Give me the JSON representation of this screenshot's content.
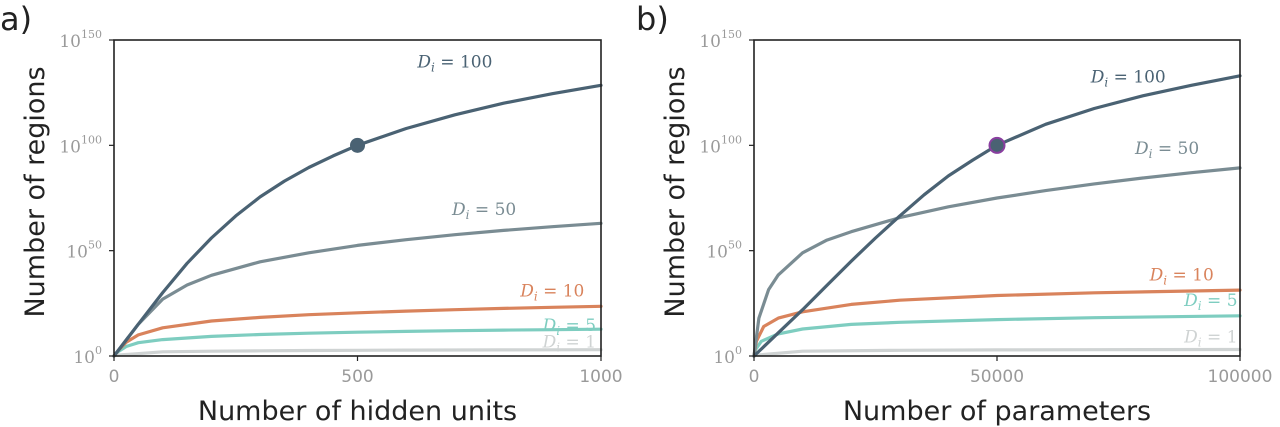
{
  "chart_data": [
    {
      "panel_label": "a)",
      "type": "line",
      "xlabel": "Number of hidden units",
      "ylabel": "Number of regions",
      "xlim": [
        0,
        1000
      ],
      "ylim": [
        0,
        150
      ],
      "y_scale": "log10",
      "xticks": [
        {
          "value": 0,
          "label": "0"
        },
        {
          "value": 500,
          "label": "500"
        },
        {
          "value": 1000,
          "label": "1000"
        }
      ],
      "yticks": [
        {
          "value": 0,
          "base": "10",
          "exp": "0"
        },
        {
          "value": 50,
          "base": "10",
          "exp": "50"
        },
        {
          "value": 100,
          "base": "10",
          "exp": "100"
        },
        {
          "value": 150,
          "base": "10",
          "exp": "150"
        }
      ],
      "series": [
        {
          "name": "D_i = 1",
          "label": "D_i = 1",
          "color": "#cfd3d3",
          "x": [
            0,
            1,
            100,
            200,
            300,
            400,
            500,
            600,
            700,
            800,
            900,
            1000
          ],
          "y": [
            0,
            0.3,
            2.0,
            2.3,
            2.48,
            2.6,
            2.7,
            2.78,
            2.85,
            2.9,
            2.95,
            3.0
          ]
        },
        {
          "name": "D_i = 5",
          "label": "D_i = 5",
          "color": "#7ecdc0",
          "x": [
            0,
            5,
            25,
            50,
            100,
            200,
            300,
            400,
            500,
            600,
            700,
            800,
            900,
            1000
          ],
          "y": [
            0,
            1.5,
            4.5,
            6.3,
            7.8,
            9.3,
            10.2,
            10.8,
            11.3,
            11.7,
            12.0,
            12.3,
            12.5,
            12.7
          ]
        },
        {
          "name": "D_i = 10",
          "label": "D_i = 10",
          "color": "#d9835c",
          "x": [
            0,
            10,
            25,
            50,
            100,
            200,
            300,
            400,
            500,
            600,
            700,
            800,
            900,
            1000
          ],
          "y": [
            0,
            3.0,
            6.5,
            10.0,
            13.4,
            16.6,
            18.3,
            19.6,
            20.5,
            21.3,
            22.0,
            22.6,
            23.1,
            23.6
          ]
        },
        {
          "name": "D_i = 50",
          "label": "D_i = 50",
          "color": "#7a8c93",
          "x": [
            0,
            50,
            100,
            150,
            200,
            300,
            400,
            500,
            600,
            700,
            800,
            900,
            1000
          ],
          "y": [
            0,
            15.1,
            27.0,
            33.7,
            38.3,
            44.7,
            49.0,
            52.5,
            55.2,
            57.6,
            59.6,
            61.4,
            63.0
          ]
        },
        {
          "name": "D_i = 100",
          "label": "D_i = 100",
          "color": "#4a6273",
          "x": [
            0,
            50,
            100,
            150,
            200,
            250,
            300,
            350,
            400,
            450,
            500,
            600,
            700,
            800,
            900,
            1000
          ],
          "y": [
            0,
            15.1,
            30.1,
            44.0,
            56.0,
            66.5,
            75.5,
            83.0,
            89.5,
            95.0,
            100.0,
            108.0,
            114.5,
            120.0,
            124.5,
            128.5
          ]
        }
      ],
      "highlight_point": {
        "x": 500,
        "y": 100,
        "color": "#4a6273"
      }
    },
    {
      "panel_label": "b)",
      "type": "line",
      "xlabel": "Number of parameters",
      "ylabel": "Number of regions",
      "xlim": [
        0,
        100000
      ],
      "ylim": [
        0,
        150
      ],
      "y_scale": "log10",
      "xticks": [
        {
          "value": 0,
          "label": "0"
        },
        {
          "value": 50000,
          "label": "50000"
        },
        {
          "value": 100000,
          "label": "100000"
        }
      ],
      "yticks": [
        {
          "value": 0,
          "base": "10",
          "exp": "0"
        },
        {
          "value": 50,
          "base": "10",
          "exp": "50"
        },
        {
          "value": 100,
          "base": "10",
          "exp": "100"
        },
        {
          "value": 150,
          "base": "10",
          "exp": "150"
        }
      ],
      "series": [
        {
          "name": "D_i = 1",
          "label": "D_i = 1",
          "color": "#cfd3d3",
          "x": [
            0,
            300,
            10000,
            30000,
            50000,
            70000,
            100000
          ],
          "y": [
            0,
            0.4,
            2.3,
            2.7,
            2.9,
            3.0,
            3.1
          ]
        },
        {
          "name": "D_i = 5",
          "label": "D_i = 5",
          "color": "#7ecdc0",
          "x": [
            0,
            300,
            1500,
            5000,
            10000,
            20000,
            30000,
            50000,
            70000,
            100000
          ],
          "y": [
            0,
            3.0,
            7.0,
            10.5,
            12.8,
            15.0,
            16.0,
            17.3,
            18.2,
            19.1
          ]
        },
        {
          "name": "D_i = 10",
          "label": "D_i = 10",
          "color": "#d9835c",
          "x": [
            0,
            500,
            2000,
            5000,
            10000,
            20000,
            30000,
            50000,
            70000,
            100000
          ],
          "y": [
            0,
            7.0,
            14.0,
            18.0,
            21.0,
            24.5,
            26.5,
            28.7,
            30.0,
            31.3
          ]
        },
        {
          "name": "D_i = 50",
          "label": "D_i = 50",
          "color": "#7a8c93",
          "x": [
            0,
            1000,
            3000,
            5000,
            10000,
            15000,
            20000,
            30000,
            40000,
            50000,
            60000,
            70000,
            80000,
            90000,
            100000
          ],
          "y": [
            0,
            18.0,
            31.5,
            38.5,
            49.0,
            55.0,
            59.0,
            65.7,
            70.8,
            75.0,
            78.5,
            81.7,
            84.5,
            87.0,
            89.3
          ]
        },
        {
          "name": "D_i = 100",
          "label": "D_i = 100",
          "color": "#4a6273",
          "x": [
            0,
            5000,
            10000,
            15000,
            20000,
            25000,
            30000,
            35000,
            40000,
            45000,
            50000,
            60000,
            70000,
            80000,
            90000,
            100000
          ],
          "y": [
            0,
            11.0,
            22.0,
            33.5,
            45.0,
            56.0,
            66.5,
            76.5,
            85.5,
            93.0,
            100.0,
            110.0,
            117.5,
            123.5,
            128.5,
            133.0
          ]
        }
      ],
      "highlight_point": {
        "x": 50000,
        "y": 100,
        "color": "#4a6273",
        "edge_color": "#8a3fa0"
      }
    }
  ]
}
